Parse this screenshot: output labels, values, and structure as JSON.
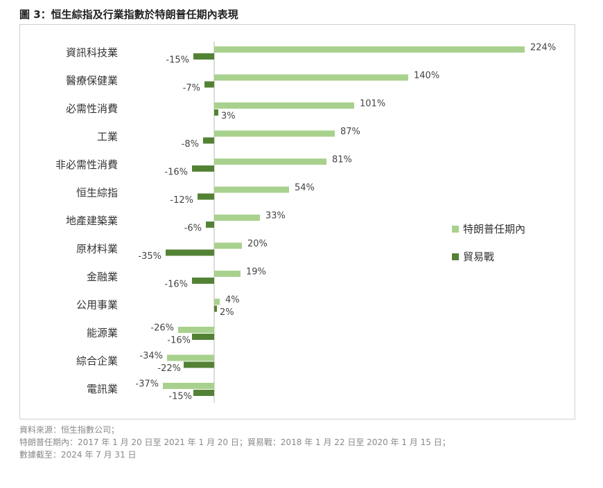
{
  "title": "圖 3：恒生綜指及行業指數於特朗普任期內表現",
  "chart_data": {
    "type": "bar",
    "orientation": "horizontal",
    "categories": [
      "資訊科技業",
      "醫療保健業",
      "必需性消費",
      "工業",
      "非必需性消費",
      "恒生綜指",
      "地產建築業",
      "原材料業",
      "金融業",
      "公用事業",
      "能源業",
      "綜合企業",
      "電訊業"
    ],
    "series": [
      {
        "name": "特朗普任期內",
        "color": "#a9d18e",
        "values": [
          224,
          140,
          101,
          87,
          81,
          54,
          33,
          20,
          19,
          4,
          -26,
          -34,
          -37
        ]
      },
      {
        "name": "貿易戰",
        "color": "#548235",
        "values": [
          -15,
          -7,
          3,
          -8,
          -16,
          -12,
          -6,
          -35,
          -16,
          2,
          -16,
          -22,
          -15
        ]
      }
    ],
    "unit": "%",
    "legend": "right",
    "grid": false
  },
  "notes": [
    "資料來源：恒生指數公司；",
    "特朗普任期內：2017 年 1 月 20 日至 2021 年 1 月 20 日；貿易戰：2018 年 1 月 22 日至 2020 年 1 月 15 日；",
    "數據截至：2024 年 7 月 31 日"
  ]
}
